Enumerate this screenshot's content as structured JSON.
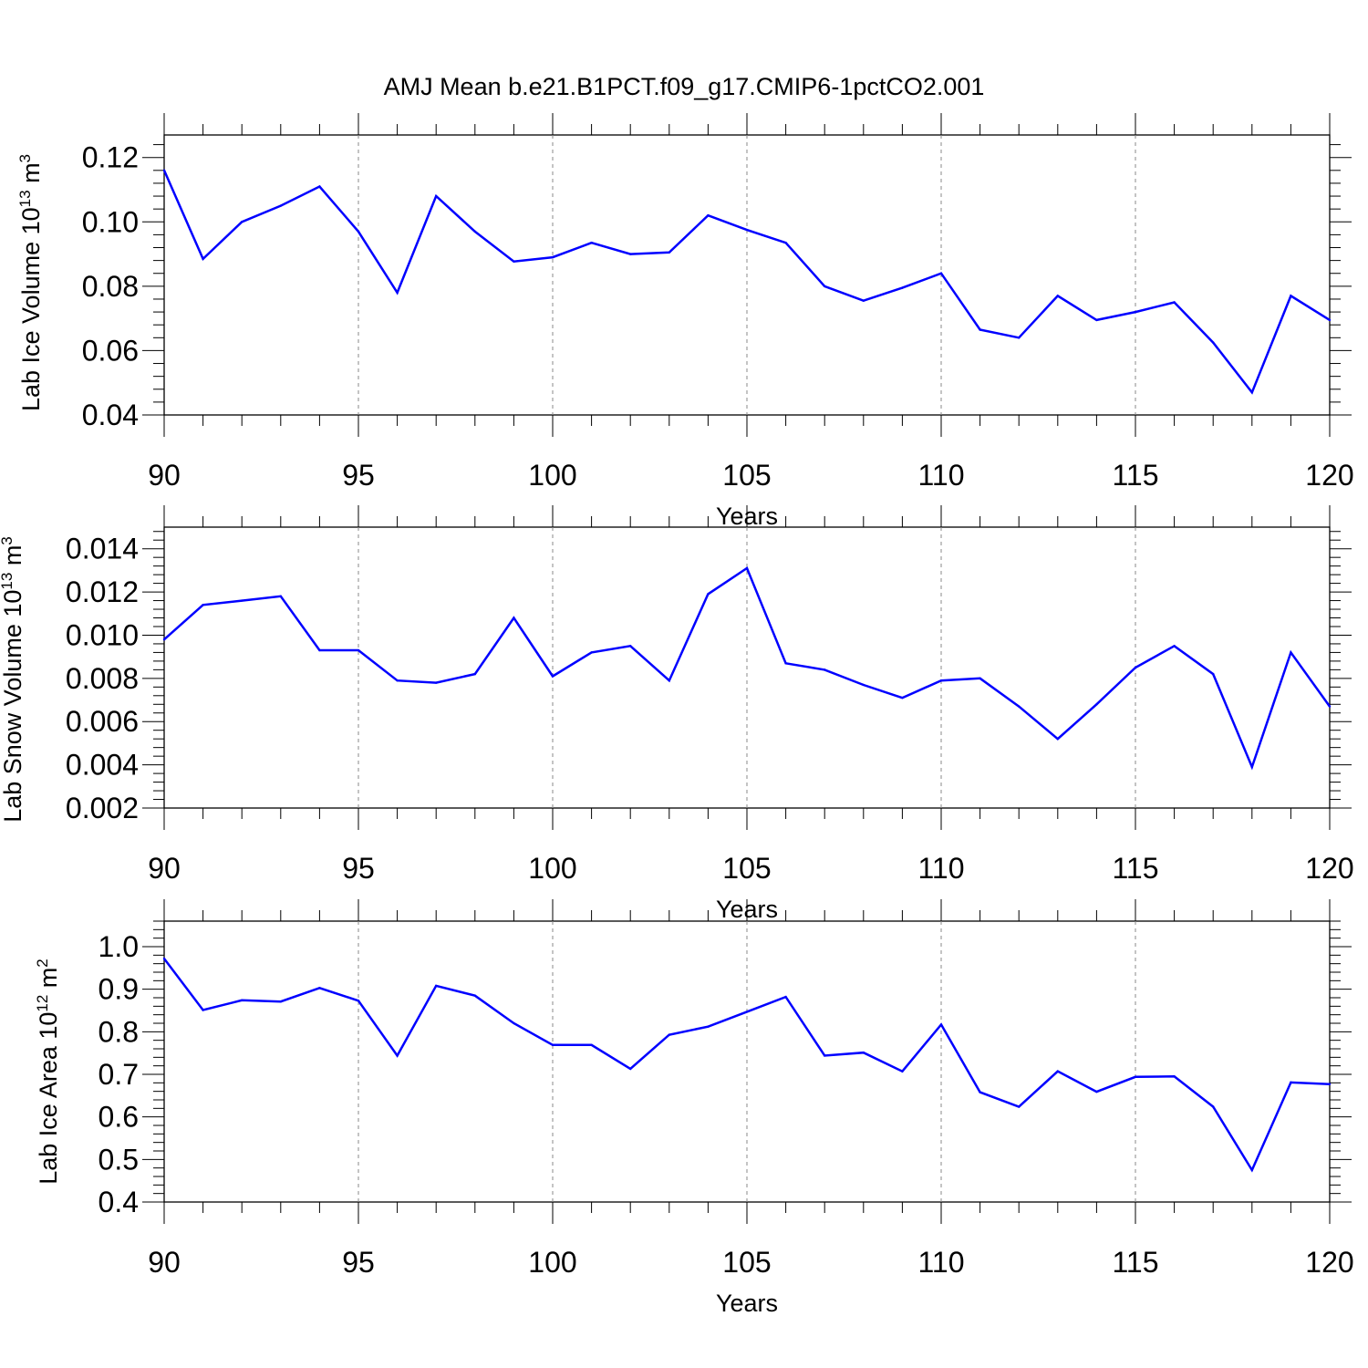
{
  "title": "AMJ Mean b.e21.B1PCT.f09_g17.CMIP6-1pctCO2.001",
  "chart_data": [
    {
      "type": "line",
      "title": "AMJ Mean b.e21.B1PCT.f09_g17.CMIP6-1pctCO2.001",
      "xlabel": "Years",
      "ylabel_main": "Lab Ice Volume 10",
      "ylabel_exp": "13",
      "ylabel_unit": "m",
      "ylabel_unit_exp": "3",
      "xlim": [
        90,
        120
      ],
      "ylim": [
        0.04,
        0.127
      ],
      "xticks": [
        90,
        95,
        100,
        105,
        110,
        115,
        120
      ],
      "yticks": [
        "0.04",
        "0.06",
        "0.08",
        "0.10",
        "0.12"
      ],
      "color": "#0000ff",
      "x": [
        90,
        91,
        92,
        93,
        94,
        95,
        96,
        97,
        98,
        99,
        100,
        101,
        102,
        103,
        104,
        105,
        106,
        107,
        108,
        109,
        110,
        111,
        112,
        113,
        114,
        115,
        116,
        117,
        118,
        119,
        120
      ],
      "values": [
        0.116,
        0.0885,
        0.1,
        0.105,
        0.111,
        0.097,
        0.078,
        0.108,
        0.097,
        0.0877,
        0.089,
        0.0935,
        0.09,
        0.0905,
        0.102,
        0.0975,
        0.0935,
        0.08,
        0.0755,
        0.0795,
        0.084,
        0.0665,
        0.064,
        0.077,
        0.0695,
        0.072,
        0.075,
        0.0625,
        0.047,
        0.077,
        0.0695
      ]
    },
    {
      "type": "line",
      "xlabel": "Years",
      "ylabel_main": "Lab Snow Volume 10",
      "ylabel_exp": "13",
      "ylabel_unit": "m",
      "ylabel_unit_exp": "3",
      "xlim": [
        90,
        120
      ],
      "ylim": [
        0.002,
        0.015
      ],
      "xticks": [
        90,
        95,
        100,
        105,
        110,
        115,
        120
      ],
      "yticks": [
        "0.002",
        "0.004",
        "0.006",
        "0.008",
        "0.010",
        "0.012",
        "0.014"
      ],
      "color": "#0000ff",
      "x": [
        90,
        91,
        92,
        93,
        94,
        95,
        96,
        97,
        98,
        99,
        100,
        101,
        102,
        103,
        104,
        105,
        106,
        107,
        108,
        109,
        110,
        111,
        112,
        113,
        114,
        115,
        116,
        117,
        118,
        119,
        120
      ],
      "values": [
        0.0098,
        0.0114,
        0.0116,
        0.0118,
        0.0093,
        0.0093,
        0.0079,
        0.0078,
        0.0082,
        0.0108,
        0.0081,
        0.0092,
        0.0095,
        0.0079,
        0.0119,
        0.0131,
        0.0087,
        0.0084,
        0.0077,
        0.0071,
        0.0079,
        0.008,
        0.0067,
        0.0052,
        0.0068,
        0.0085,
        0.0095,
        0.0082,
        0.0039,
        0.0092,
        0.0067
      ]
    },
    {
      "type": "line",
      "xlabel": "Years",
      "ylabel_main": "Lab Ice Area 10",
      "ylabel_exp": "12",
      "ylabel_unit": "m",
      "ylabel_unit_exp": "2",
      "xlim": [
        90,
        120
      ],
      "ylim": [
        0.4,
        1.06
      ],
      "xticks": [
        90,
        95,
        100,
        105,
        110,
        115,
        120
      ],
      "yticks": [
        "0.4",
        "0.5",
        "0.6",
        "0.7",
        "0.8",
        "0.9",
        "1.0"
      ],
      "color": "#0000ff",
      "x": [
        90,
        91,
        92,
        93,
        94,
        95,
        96,
        97,
        98,
        99,
        100,
        101,
        102,
        103,
        104,
        105,
        106,
        107,
        108,
        109,
        110,
        111,
        112,
        113,
        114,
        115,
        116,
        117,
        118,
        119,
        120
      ],
      "values": [
        0.972,
        0.851,
        0.874,
        0.871,
        0.903,
        0.873,
        0.744,
        0.908,
        0.885,
        0.82,
        0.769,
        0.769,
        0.713,
        0.793,
        0.812,
        0.847,
        0.882,
        0.744,
        0.751,
        0.707,
        0.817,
        0.658,
        0.624,
        0.707,
        0.659,
        0.694,
        0.695,
        0.624,
        0.475,
        0.681,
        0.677
      ]
    }
  ]
}
